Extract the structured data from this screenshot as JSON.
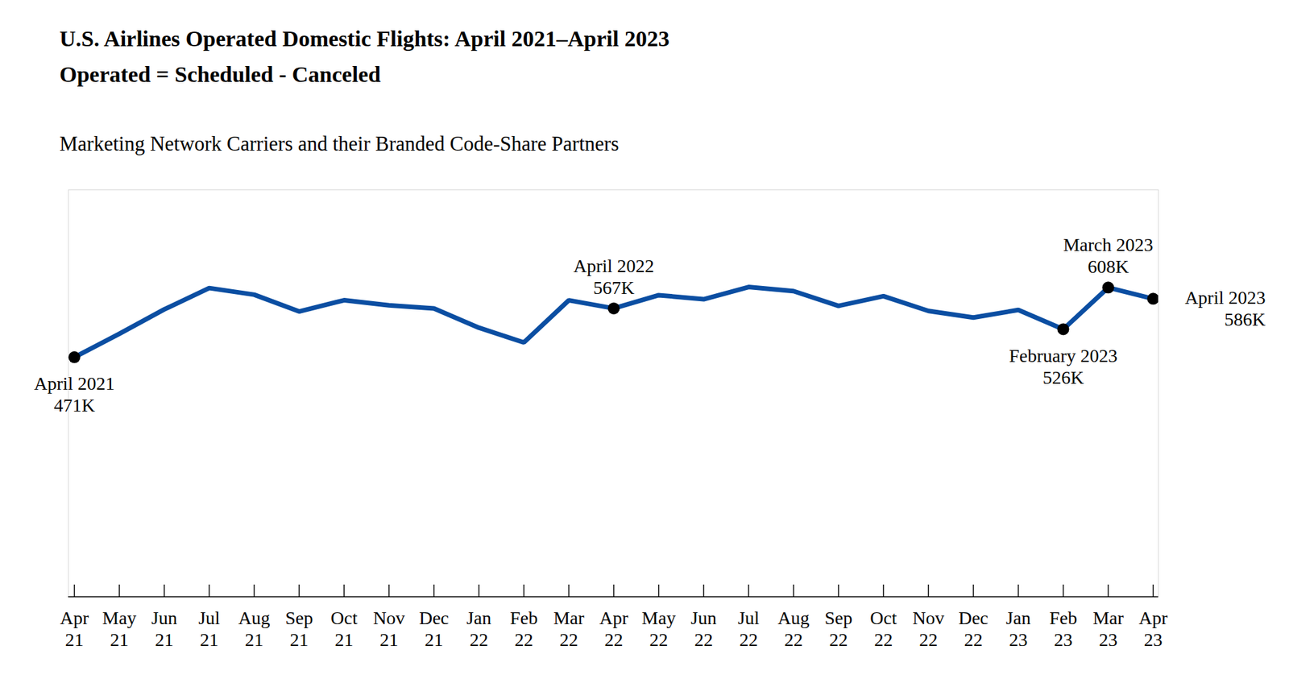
{
  "chart_data": {
    "type": "line",
    "title": [
      "U.S. Airlines Operated Domestic Flights: April 2021–April 2023",
      "Operated = Scheduled - Canceled"
    ],
    "subtitle": "Marketing Network Carriers and their Branded Code-Share Partners",
    "categories": [
      "Apr 21",
      "May 21",
      "Jun 21",
      "Jul 21",
      "Aug 21",
      "Sep 21",
      "Oct 21",
      "Nov 21",
      "Dec 21",
      "Jan 22",
      "Feb 22",
      "Mar 22",
      "Apr 22",
      "May 22",
      "Jun 22",
      "Jul 22",
      "Aug 22",
      "Sep 22",
      "Oct 22",
      "Nov 22",
      "Dec 22",
      "Jan 23",
      "Feb 23",
      "Mar 23",
      "Apr 23"
    ],
    "values": [
      471,
      517,
      565,
      607,
      594,
      561,
      583,
      573,
      567,
      529,
      500,
      583,
      567,
      593,
      585,
      609,
      601,
      572,
      591,
      562,
      549,
      564,
      526,
      608,
      586
    ],
    "color": "#0b4ea2",
    "ylim": [
      0,
      800
    ],
    "tick_labels": "x",
    "annotations": [
      {
        "category": "Apr 21",
        "label": "April 2021",
        "value_label": "471K"
      },
      {
        "category": "Apr 22",
        "label": "April 2022",
        "value_label": "567K"
      },
      {
        "category": "Feb 23",
        "label": "February 2023",
        "value_label": "526K"
      },
      {
        "category": "Mar 23",
        "label": "March 2023",
        "value_label": "608K"
      },
      {
        "category": "Apr 23",
        "label": "April 2023",
        "value_label": "586K"
      }
    ]
  }
}
